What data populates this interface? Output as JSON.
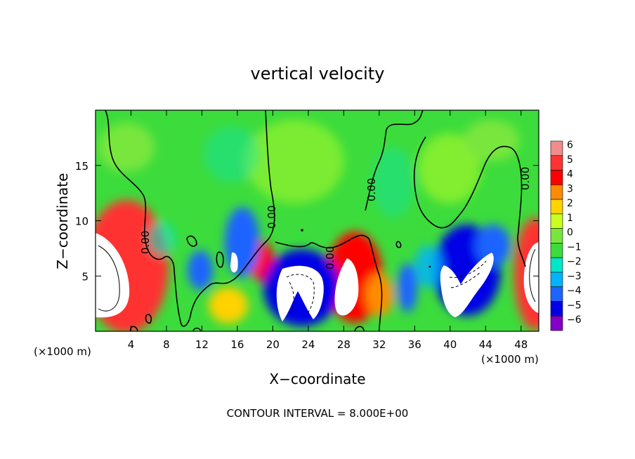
{
  "chart_data": {
    "type": "heatmap",
    "title": "vertical velocity",
    "xlabel": "X−coordinate",
    "ylabel": "Z−coordinate",
    "x_unit_left": "(×1000 m)",
    "x_unit_right": "(×1000 m)",
    "footer": "CONTOUR INTERVAL = 8.000E+00",
    "xlim": [
      0,
      50
    ],
    "ylim": [
      0,
      20
    ],
    "x_ticks": [
      4,
      8,
      12,
      16,
      20,
      24,
      28,
      32,
      36,
      40,
      44,
      48
    ],
    "y_ticks": [
      5,
      10,
      15
    ],
    "contour_label": "0.00",
    "colorbar": {
      "levels": [
        6,
        5,
        4,
        3,
        2,
        1,
        0,
        -1,
        -2,
        -3,
        -4,
        -5,
        -6
      ],
      "colors": [
        "#f08c8c",
        "#ff3333",
        "#ff0000",
        "#ff8c00",
        "#ffd200",
        "#c8ff1e",
        "#78e63c",
        "#3cdc3c",
        "#00e6c8",
        "#00b4ff",
        "#1e64ff",
        "#0000e6",
        "#8200c8"
      ]
    },
    "cells": [
      {
        "x": 1.5,
        "z": 5.5,
        "value": 7
      },
      {
        "x": 49.5,
        "z": 5.5,
        "value": 7
      },
      {
        "x": 22.5,
        "z": 3.5,
        "value": -7
      },
      {
        "x": 29,
        "z": 4.5,
        "value": 7
      },
      {
        "x": 41,
        "z": 4.5,
        "value": -7
      },
      {
        "x": 16,
        "z": 6,
        "value": -7
      },
      {
        "x": 19,
        "z": 6,
        "value": 4
      },
      {
        "x": 32,
        "z": 3,
        "value": 4
      },
      {
        "x": 34,
        "z": 2,
        "value": -4
      },
      {
        "x": 15,
        "z": 2,
        "value": 2
      },
      {
        "x": 12,
        "z": 5,
        "value": -4
      },
      {
        "x": 17.5,
        "z": 9.5,
        "value": -4
      },
      {
        "x": 18.5,
        "z": 17,
        "value": 1
      },
      {
        "x": 40,
        "z": 13.5,
        "value": 1
      }
    ]
  }
}
